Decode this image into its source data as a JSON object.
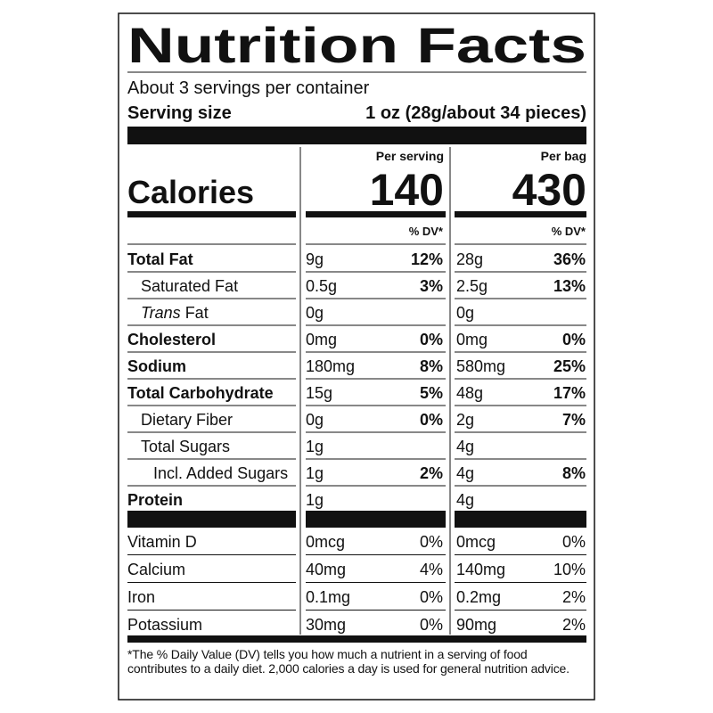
{
  "title": "Nutrition Facts",
  "servings": "About 3 servings per container",
  "serving_size_label": "Serving size",
  "serving_size": "1 oz (28g/about 34 pieces)",
  "columns": [
    "Per serving",
    "Per bag"
  ],
  "calories_label": "Calories",
  "calories": [
    140,
    430
  ],
  "dv_header": "% DV*",
  "nutrients": [
    {
      "name": "Total Fat",
      "bold": true,
      "indent": 0,
      "serving": "9g",
      "serving_dv": "12%",
      "bag": "28g",
      "bag_dv": "36%"
    },
    {
      "name": "Saturated Fat",
      "bold": false,
      "indent": 1,
      "serving": "0.5g",
      "serving_dv": "3%",
      "bag": "2.5g",
      "bag_dv": "13%"
    },
    {
      "name_italic": "Trans",
      "name": "Fat",
      "bold": false,
      "indent": 1,
      "serving": "0g",
      "bag": "0g"
    },
    {
      "name": "Cholesterol",
      "bold": true,
      "indent": 0,
      "serving": "0mg",
      "serving_dv": "0%",
      "bag": "0mg",
      "bag_dv": "0%"
    },
    {
      "name": "Sodium",
      "bold": true,
      "indent": 0,
      "serving": "180mg",
      "serving_dv": "8%",
      "bag": "580mg",
      "bag_dv": "25%"
    },
    {
      "name": "Total Carbohydrate",
      "bold": true,
      "indent": 0,
      "serving": "15g",
      "serving_dv": "5%",
      "bag": "48g",
      "bag_dv": "17%"
    },
    {
      "name": "Dietary Fiber",
      "bold": false,
      "indent": 1,
      "serving": "0g",
      "serving_dv": "0%",
      "bag": "2g",
      "bag_dv": "7%"
    },
    {
      "name": "Total Sugars",
      "bold": false,
      "indent": 1,
      "serving": "1g",
      "bag": "4g"
    },
    {
      "name": "Incl. Added Sugars",
      "bold": false,
      "indent": 2,
      "serving": "1g",
      "serving_dv": "2%",
      "bag": "4g",
      "bag_dv": "8%"
    },
    {
      "name": "Protein",
      "bold": true,
      "indent": 0,
      "serving": "1g",
      "bag": "4g"
    }
  ],
  "vitamins": [
    {
      "name": "Vitamin D",
      "serving": "0mcg",
      "serving_dv": "0%",
      "bag": "0mcg",
      "bag_dv": "0%"
    },
    {
      "name": "Calcium",
      "serving": "40mg",
      "serving_dv": "4%",
      "bag": "140mg",
      "bag_dv": "10%"
    },
    {
      "name": "Iron",
      "serving": "0.1mg",
      "serving_dv": "0%",
      "bag": "0.2mg",
      "bag_dv": "2%"
    },
    {
      "name": "Potassium",
      "serving": "30mg",
      "serving_dv": "0%",
      "bag": "90mg",
      "bag_dv": "2%"
    }
  ],
  "footnote": "*The % Daily Value (DV) tells you how much a nutrient in a serving of food contributes to a daily diet. 2,000 calories a day is used for general nutrition advice."
}
